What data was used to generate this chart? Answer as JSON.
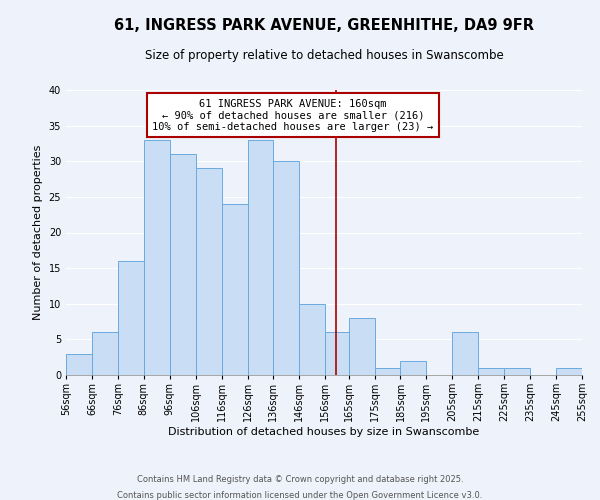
{
  "title": "61, INGRESS PARK AVENUE, GREENHITHE, DA9 9FR",
  "subtitle": "Size of property relative to detached houses in Swanscombe",
  "xlabel": "Distribution of detached houses by size in Swanscombe",
  "ylabel": "Number of detached properties",
  "bar_edges": [
    56,
    66,
    76,
    86,
    96,
    106,
    116,
    126,
    136,
    146,
    156,
    165,
    175,
    185,
    195,
    205,
    215,
    225,
    235,
    245,
    255
  ],
  "bar_heights": [
    3,
    6,
    16,
    33,
    31,
    29,
    24,
    33,
    30,
    10,
    6,
    8,
    1,
    2,
    0,
    6,
    1,
    1,
    0,
    1
  ],
  "bar_color": "#c9ddf5",
  "bar_edge_color": "#6aaae0",
  "vline_x": 160,
  "vline_color": "#aa0000",
  "ylim": [
    0,
    40
  ],
  "yticks": [
    0,
    5,
    10,
    15,
    20,
    25,
    30,
    35,
    40
  ],
  "annotation_title": "61 INGRESS PARK AVENUE: 160sqm",
  "annotation_line1": "← 90% of detached houses are smaller (216)",
  "annotation_line2": "10% of semi-detached houses are larger (23) →",
  "footer1": "Contains HM Land Registry data © Crown copyright and database right 2025.",
  "footer2": "Contains public sector information licensed under the Open Government Licence v3.0.",
  "background_color": "#eef2fa",
  "plot_bg_color": "#eef2fa",
  "grid_color": "#ffffff",
  "title_fontsize": 10.5,
  "subtitle_fontsize": 8.5,
  "ylabel_fontsize": 8,
  "xlabel_fontsize": 8,
  "tick_fontsize": 7,
  "ann_fontsize": 7.5,
  "footer_fontsize": 6
}
